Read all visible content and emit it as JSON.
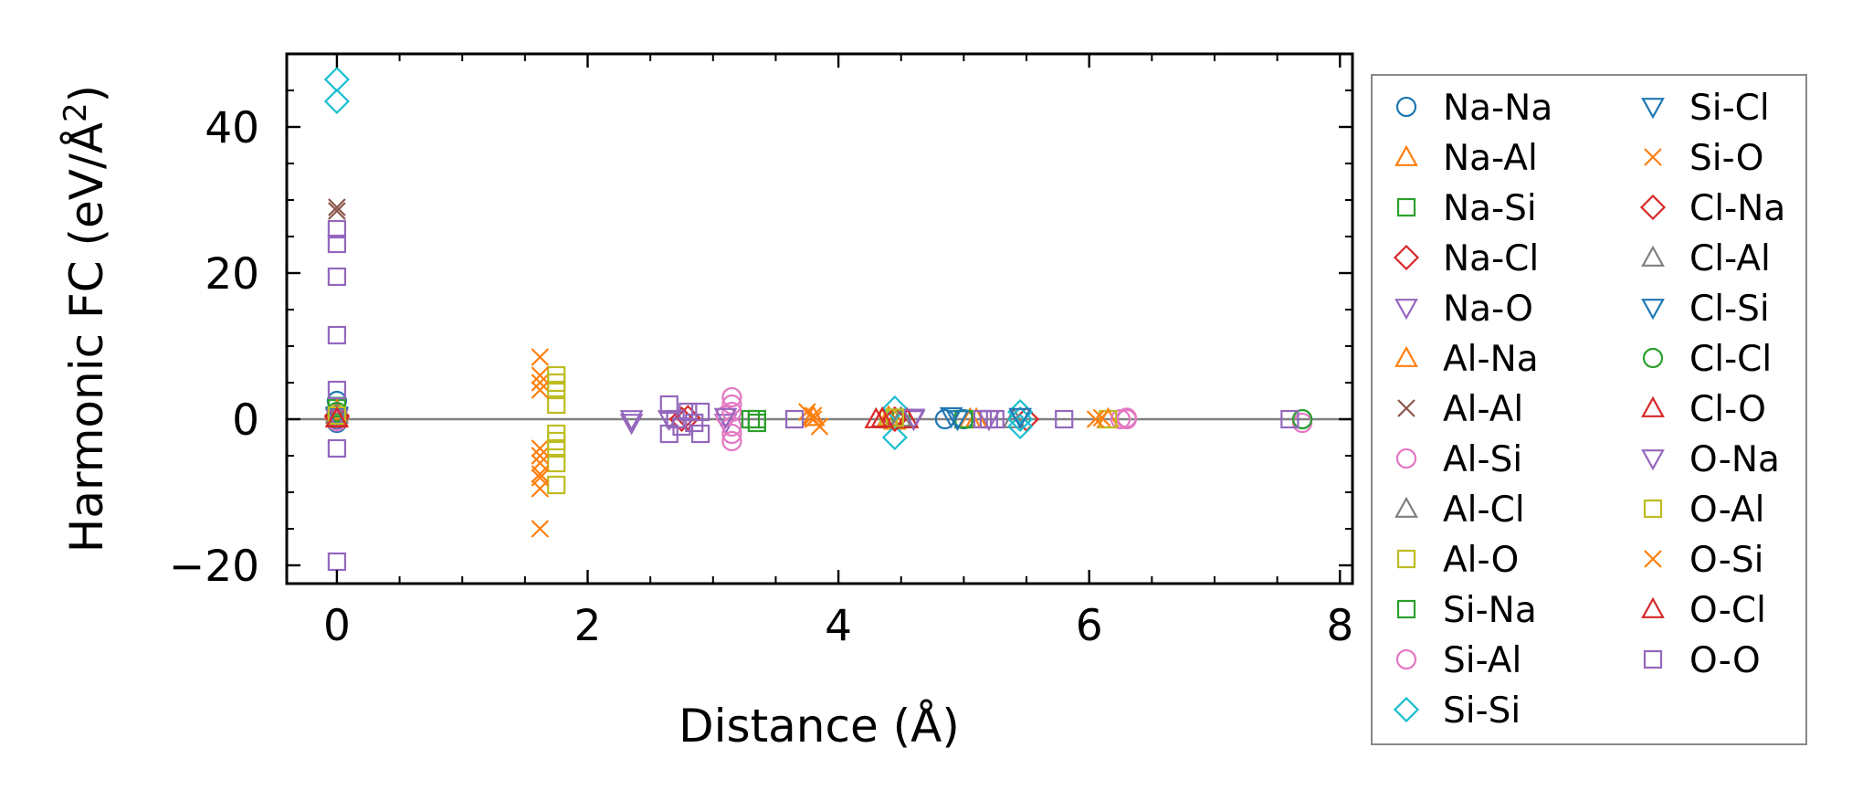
{
  "chart_data": {
    "type": "scatter",
    "title": "",
    "xlabel": "Distance (Å)",
    "ylabel_main": "Harmonic FC (eV/Å",
    "ylabel_sup": "2",
    "ylabel_close": ")",
    "xlim": [
      -0.4,
      8.1
    ],
    "ylim": [
      -22.5,
      50
    ],
    "xticks": [
      0,
      2,
      4,
      6,
      8
    ],
    "yticks": [
      -20,
      0,
      20,
      40
    ],
    "xtick_labels": [
      "0",
      "2",
      "4",
      "6",
      "8"
    ],
    "ytick_labels": [
      "−20",
      "0",
      "20",
      "40"
    ],
    "zero_line": 0,
    "legend_position": "right",
    "series": [
      {
        "name": "Na-Na",
        "marker": "circle",
        "color": "#1f77b4",
        "points": [
          [
            0,
            0
          ],
          [
            0,
            2.5
          ],
          [
            0,
            -0.5
          ],
          [
            4.85,
            0
          ],
          [
            5.0,
            0
          ],
          [
            7.7,
            0
          ]
        ]
      },
      {
        "name": "Na-Al",
        "marker": "triangle-up",
        "color": "#ff7f0e",
        "points": [
          [
            0,
            1
          ],
          [
            4.4,
            0.3
          ],
          [
            4.45,
            -0.2
          ],
          [
            5.05,
            0
          ],
          [
            6.15,
            0
          ]
        ]
      },
      {
        "name": "Na-Si",
        "marker": "square",
        "color": "#2ca02c",
        "points": [
          [
            0,
            1.5
          ],
          [
            3.35,
            0
          ],
          [
            4.5,
            0
          ],
          [
            5.0,
            0
          ]
        ]
      },
      {
        "name": "Na-Cl",
        "marker": "diamond",
        "color": "#d62728",
        "points": [
          [
            0,
            0.5
          ],
          [
            2.75,
            0
          ],
          [
            4.45,
            0
          ],
          [
            5.5,
            0
          ]
        ]
      },
      {
        "name": "Na-O",
        "marker": "triangle-down",
        "color": "#9467bd",
        "points": [
          [
            0,
            0.2
          ],
          [
            2.35,
            -0.5
          ],
          [
            2.65,
            0
          ],
          [
            3.1,
            -0.5
          ],
          [
            4.6,
            0
          ],
          [
            5.2,
            0
          ]
        ]
      },
      {
        "name": "Al-Na",
        "marker": "triangle-up",
        "color": "#ff7f0e",
        "points": [
          [
            0,
            1.2
          ],
          [
            3.8,
            0.3
          ],
          [
            4.4,
            0
          ],
          [
            5.1,
            0
          ]
        ]
      },
      {
        "name": "Al-Al",
        "marker": "x",
        "color": "#8c564b",
        "points": [
          [
            0,
            29
          ],
          [
            0,
            28.5
          ]
        ]
      },
      {
        "name": "Al-Si",
        "marker": "circle",
        "color": "#e377c2",
        "points": [
          [
            3.15,
            3
          ],
          [
            3.15,
            2
          ],
          [
            3.15,
            1
          ],
          [
            3.15,
            -1
          ],
          [
            3.15,
            -2
          ],
          [
            3.15,
            -3
          ],
          [
            6.25,
            0
          ],
          [
            6.3,
            0
          ],
          [
            7.7,
            -0.5
          ]
        ]
      },
      {
        "name": "Al-Cl",
        "marker": "triangle-up",
        "color": "#7f7f7f",
        "points": [
          [
            0,
            0.8
          ],
          [
            4.5,
            0
          ],
          [
            5.4,
            0
          ]
        ]
      },
      {
        "name": "Al-O",
        "marker": "square",
        "color": "#bcbd22",
        "points": [
          [
            1.75,
            6
          ],
          [
            1.75,
            4
          ],
          [
            1.75,
            2
          ],
          [
            1.75,
            -2
          ],
          [
            1.75,
            -4
          ],
          [
            1.75,
            -6
          ],
          [
            1.75,
            -9
          ],
          [
            4.4,
            0
          ],
          [
            6.15,
            0
          ]
        ]
      },
      {
        "name": "Si-Na",
        "marker": "square",
        "color": "#2ca02c",
        "points": [
          [
            0,
            1.8
          ],
          [
            3.3,
            0
          ],
          [
            3.35,
            -0.5
          ],
          [
            5.0,
            0
          ]
        ]
      },
      {
        "name": "Si-Al",
        "marker": "circle",
        "color": "#e377c2",
        "points": [
          [
            0,
            -0.3
          ],
          [
            3.1,
            0.5
          ],
          [
            6.3,
            0.2
          ]
        ]
      },
      {
        "name": "Si-Si",
        "marker": "diamond",
        "color": "#17becf",
        "points": [
          [
            0,
            46.5
          ],
          [
            0,
            43.5
          ],
          [
            4.45,
            1.5
          ],
          [
            4.45,
            -2.5
          ],
          [
            5.45,
            1
          ],
          [
            5.45,
            0
          ],
          [
            5.45,
            -1
          ]
        ]
      },
      {
        "name": "Si-Cl",
        "marker": "triangle-down",
        "color": "#1f77b4",
        "points": [
          [
            0,
            0.5
          ],
          [
            4.9,
            0.4
          ],
          [
            5.45,
            0.3
          ]
        ]
      },
      {
        "name": "Si-O",
        "marker": "x",
        "color": "#ff7f0e",
        "points": [
          [
            1.62,
            8.5
          ],
          [
            1.62,
            5
          ],
          [
            1.62,
            4
          ],
          [
            1.62,
            -4
          ],
          [
            1.62,
            -5
          ],
          [
            1.62,
            -6
          ],
          [
            1.62,
            -7.5
          ],
          [
            1.62,
            -9.5
          ],
          [
            1.62,
            -15
          ],
          [
            3.75,
            1
          ],
          [
            3.8,
            0
          ],
          [
            3.85,
            -1
          ],
          [
            6.05,
            0
          ]
        ]
      },
      {
        "name": "Cl-Na",
        "marker": "diamond",
        "color": "#d62728",
        "points": [
          [
            0,
            0.3
          ],
          [
            2.8,
            0.2
          ],
          [
            4.45,
            0
          ]
        ]
      },
      {
        "name": "Cl-Al",
        "marker": "triangle-up",
        "color": "#7f7f7f",
        "points": [
          [
            0,
            0.6
          ],
          [
            4.5,
            0.2
          ]
        ]
      },
      {
        "name": "Cl-Si",
        "marker": "triangle-down",
        "color": "#1f77b4",
        "points": [
          [
            0,
            0.4
          ],
          [
            4.95,
            0
          ]
        ]
      },
      {
        "name": "Cl-Cl",
        "marker": "circle",
        "color": "#2ca02c",
        "points": [
          [
            0,
            1
          ],
          [
            7.7,
            0
          ]
        ]
      },
      {
        "name": "Cl-O",
        "marker": "triangle-up",
        "color": "#d62728",
        "points": [
          [
            0,
            0.2
          ],
          [
            4.3,
            0
          ],
          [
            4.55,
            0
          ]
        ]
      },
      {
        "name": "O-Na",
        "marker": "triangle-down",
        "color": "#9467bd",
        "points": [
          [
            0,
            0.1
          ],
          [
            2.35,
            0
          ],
          [
            3.1,
            0.3
          ],
          [
            4.6,
            0.2
          ]
        ]
      },
      {
        "name": "O-Al",
        "marker": "square",
        "color": "#bcbd22",
        "points": [
          [
            0,
            0.5
          ],
          [
            1.75,
            5
          ],
          [
            1.75,
            -3
          ],
          [
            4.45,
            0.2
          ]
        ]
      },
      {
        "name": "O-Si",
        "marker": "x",
        "color": "#ff7f0e",
        "points": [
          [
            1.62,
            6
          ],
          [
            1.62,
            -8
          ],
          [
            3.8,
            0.5
          ],
          [
            6.1,
            0.2
          ]
        ]
      },
      {
        "name": "O-Cl",
        "marker": "triangle-up",
        "color": "#d62728",
        "points": [
          [
            0,
            0.1
          ],
          [
            4.35,
            0.1
          ]
        ]
      },
      {
        "name": "O-O",
        "marker": "square",
        "color": "#9467bd",
        "points": [
          [
            0,
            26
          ],
          [
            0,
            24
          ],
          [
            0,
            19.5
          ],
          [
            0,
            11.5
          ],
          [
            0,
            4
          ],
          [
            0,
            -4
          ],
          [
            0,
            -19.5
          ],
          [
            2.65,
            2
          ],
          [
            2.65,
            -2
          ],
          [
            2.7,
            0
          ],
          [
            2.75,
            -1
          ],
          [
            2.8,
            1
          ],
          [
            2.85,
            -0.5
          ],
          [
            2.9,
            1
          ],
          [
            2.9,
            -2
          ],
          [
            3.65,
            0
          ],
          [
            5.15,
            0
          ],
          [
            5.2,
            0
          ],
          [
            5.25,
            0
          ],
          [
            5.8,
            0
          ],
          [
            7.6,
            0
          ]
        ]
      }
    ]
  }
}
